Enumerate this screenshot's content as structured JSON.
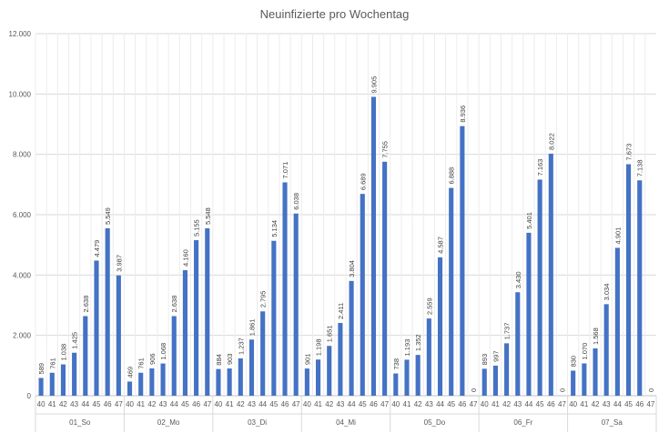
{
  "chart_data": {
    "type": "bar",
    "title": "Neuinfizierte pro Wochentag",
    "ylim": [
      0,
      12000
    ],
    "y_ticks": [
      "0",
      "2.000",
      "4.000",
      "6.000",
      "8.000",
      "10.000",
      "12.000"
    ],
    "grid": true,
    "bar_color": "#4472C4",
    "groups": [
      {
        "name": "01_So",
        "categories": [
          "40",
          "41",
          "42",
          "43",
          "44",
          "45",
          "46",
          "47"
        ],
        "values": [
          589,
          761,
          1038,
          1425,
          2638,
          4479,
          5549,
          3987
        ],
        "labels": [
          "589",
          "761",
          "1.038",
          "1.425",
          "2.638",
          "4.479",
          "5.549",
          "3.987"
        ]
      },
      {
        "name": "02_Mo",
        "categories": [
          "40",
          "41",
          "42",
          "43",
          "44",
          "45",
          "46",
          "47"
        ],
        "values": [
          469,
          761,
          906,
          1068,
          2638,
          4160,
          5155,
          5548
        ],
        "labels": [
          "469",
          "761",
          "906",
          "1.068",
          "2.638",
          "4.160",
          "5.155",
          "5.548"
        ]
      },
      {
        "name": "03_Di",
        "categories": [
          "40",
          "41",
          "42",
          "43",
          "44",
          "45",
          "46",
          "47"
        ],
        "values": [
          884,
          903,
          1237,
          1861,
          2795,
          5134,
          7071,
          6038
        ],
        "labels": [
          "884",
          "903",
          "1.237",
          "1.861",
          "2.795",
          "5.134",
          "7.071",
          "6.038"
        ]
      },
      {
        "name": "04_Mi",
        "categories": [
          "40",
          "41",
          "42",
          "43",
          "44",
          "45",
          "46",
          "47"
        ],
        "values": [
          901,
          1198,
          1651,
          2411,
          3804,
          6689,
          9905,
          7755
        ],
        "labels": [
          "901",
          "1.198",
          "1.651",
          "2.411",
          "3.804",
          "6.689",
          "9.905",
          "7.755"
        ]
      },
      {
        "name": "05_Do",
        "categories": [
          "40",
          "41",
          "42",
          "43",
          "44",
          "45",
          "46",
          "47"
        ],
        "values": [
          738,
          1193,
          1352,
          2559,
          4587,
          6888,
          8936,
          0
        ],
        "labels": [
          "738",
          "1.193",
          "1.352",
          "2.559",
          "4.587",
          "6.888",
          "8.936",
          "0"
        ]
      },
      {
        "name": "06_Fr",
        "categories": [
          "40",
          "41",
          "42",
          "43",
          "44",
          "45",
          "46",
          "47"
        ],
        "values": [
          893,
          997,
          1737,
          3430,
          5401,
          7163,
          8022,
          0
        ],
        "labels": [
          "893",
          "997",
          "1.737",
          "3.430",
          "5.401",
          "7.163",
          "8.022",
          "0"
        ]
      },
      {
        "name": "07_Sa",
        "categories": [
          "40",
          "41",
          "42",
          "43",
          "44",
          "45",
          "46",
          "47"
        ],
        "values": [
          830,
          1070,
          1568,
          3034,
          4901,
          7673,
          7138,
          0
        ],
        "labels": [
          "830",
          "1.070",
          "1.568",
          "3.034",
          "4.901",
          "7.673",
          "7.138",
          "0"
        ]
      }
    ]
  }
}
